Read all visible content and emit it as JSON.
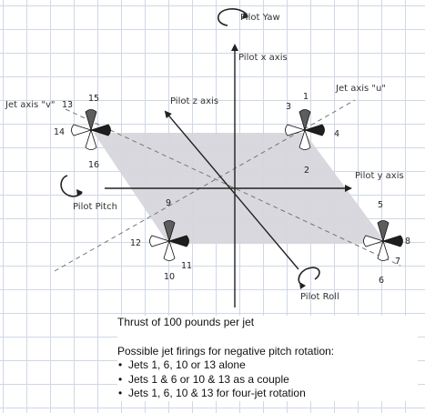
{
  "labels": {
    "pilot_yaw": "Pilot Yaw",
    "pilot_x_axis": "Pilot x axis",
    "jet_axis_u": "Jet axis \"u\"",
    "jet_axis_v": "Jet axis \"v\"",
    "pilot_z_axis": "Pilot z axis",
    "pilot_y_axis": "Pilot y axis",
    "pilot_pitch": "Pilot Pitch",
    "pilot_roll": "Pilot Roll"
  },
  "jets": {
    "top_left": [
      "15",
      "13",
      "14",
      "16"
    ],
    "top_right": [
      "1",
      "3",
      "4",
      "2"
    ],
    "bottom_left": [
      "9",
      "12",
      "11",
      "10"
    ],
    "bottom_right": [
      "5",
      "8",
      "7",
      "6"
    ]
  },
  "notes": {
    "thrust": "Thrust of 100 pounds per jet",
    "heading": "Possible jet firings for negative pitch rotation:",
    "items": [
      "Jets 1, 6, 10 or 13 alone",
      "Jets 1 & 6 or 10 & 13 as a couple",
      "Jets 1, 6, 10 & 13 for four-jet rotation"
    ]
  }
}
